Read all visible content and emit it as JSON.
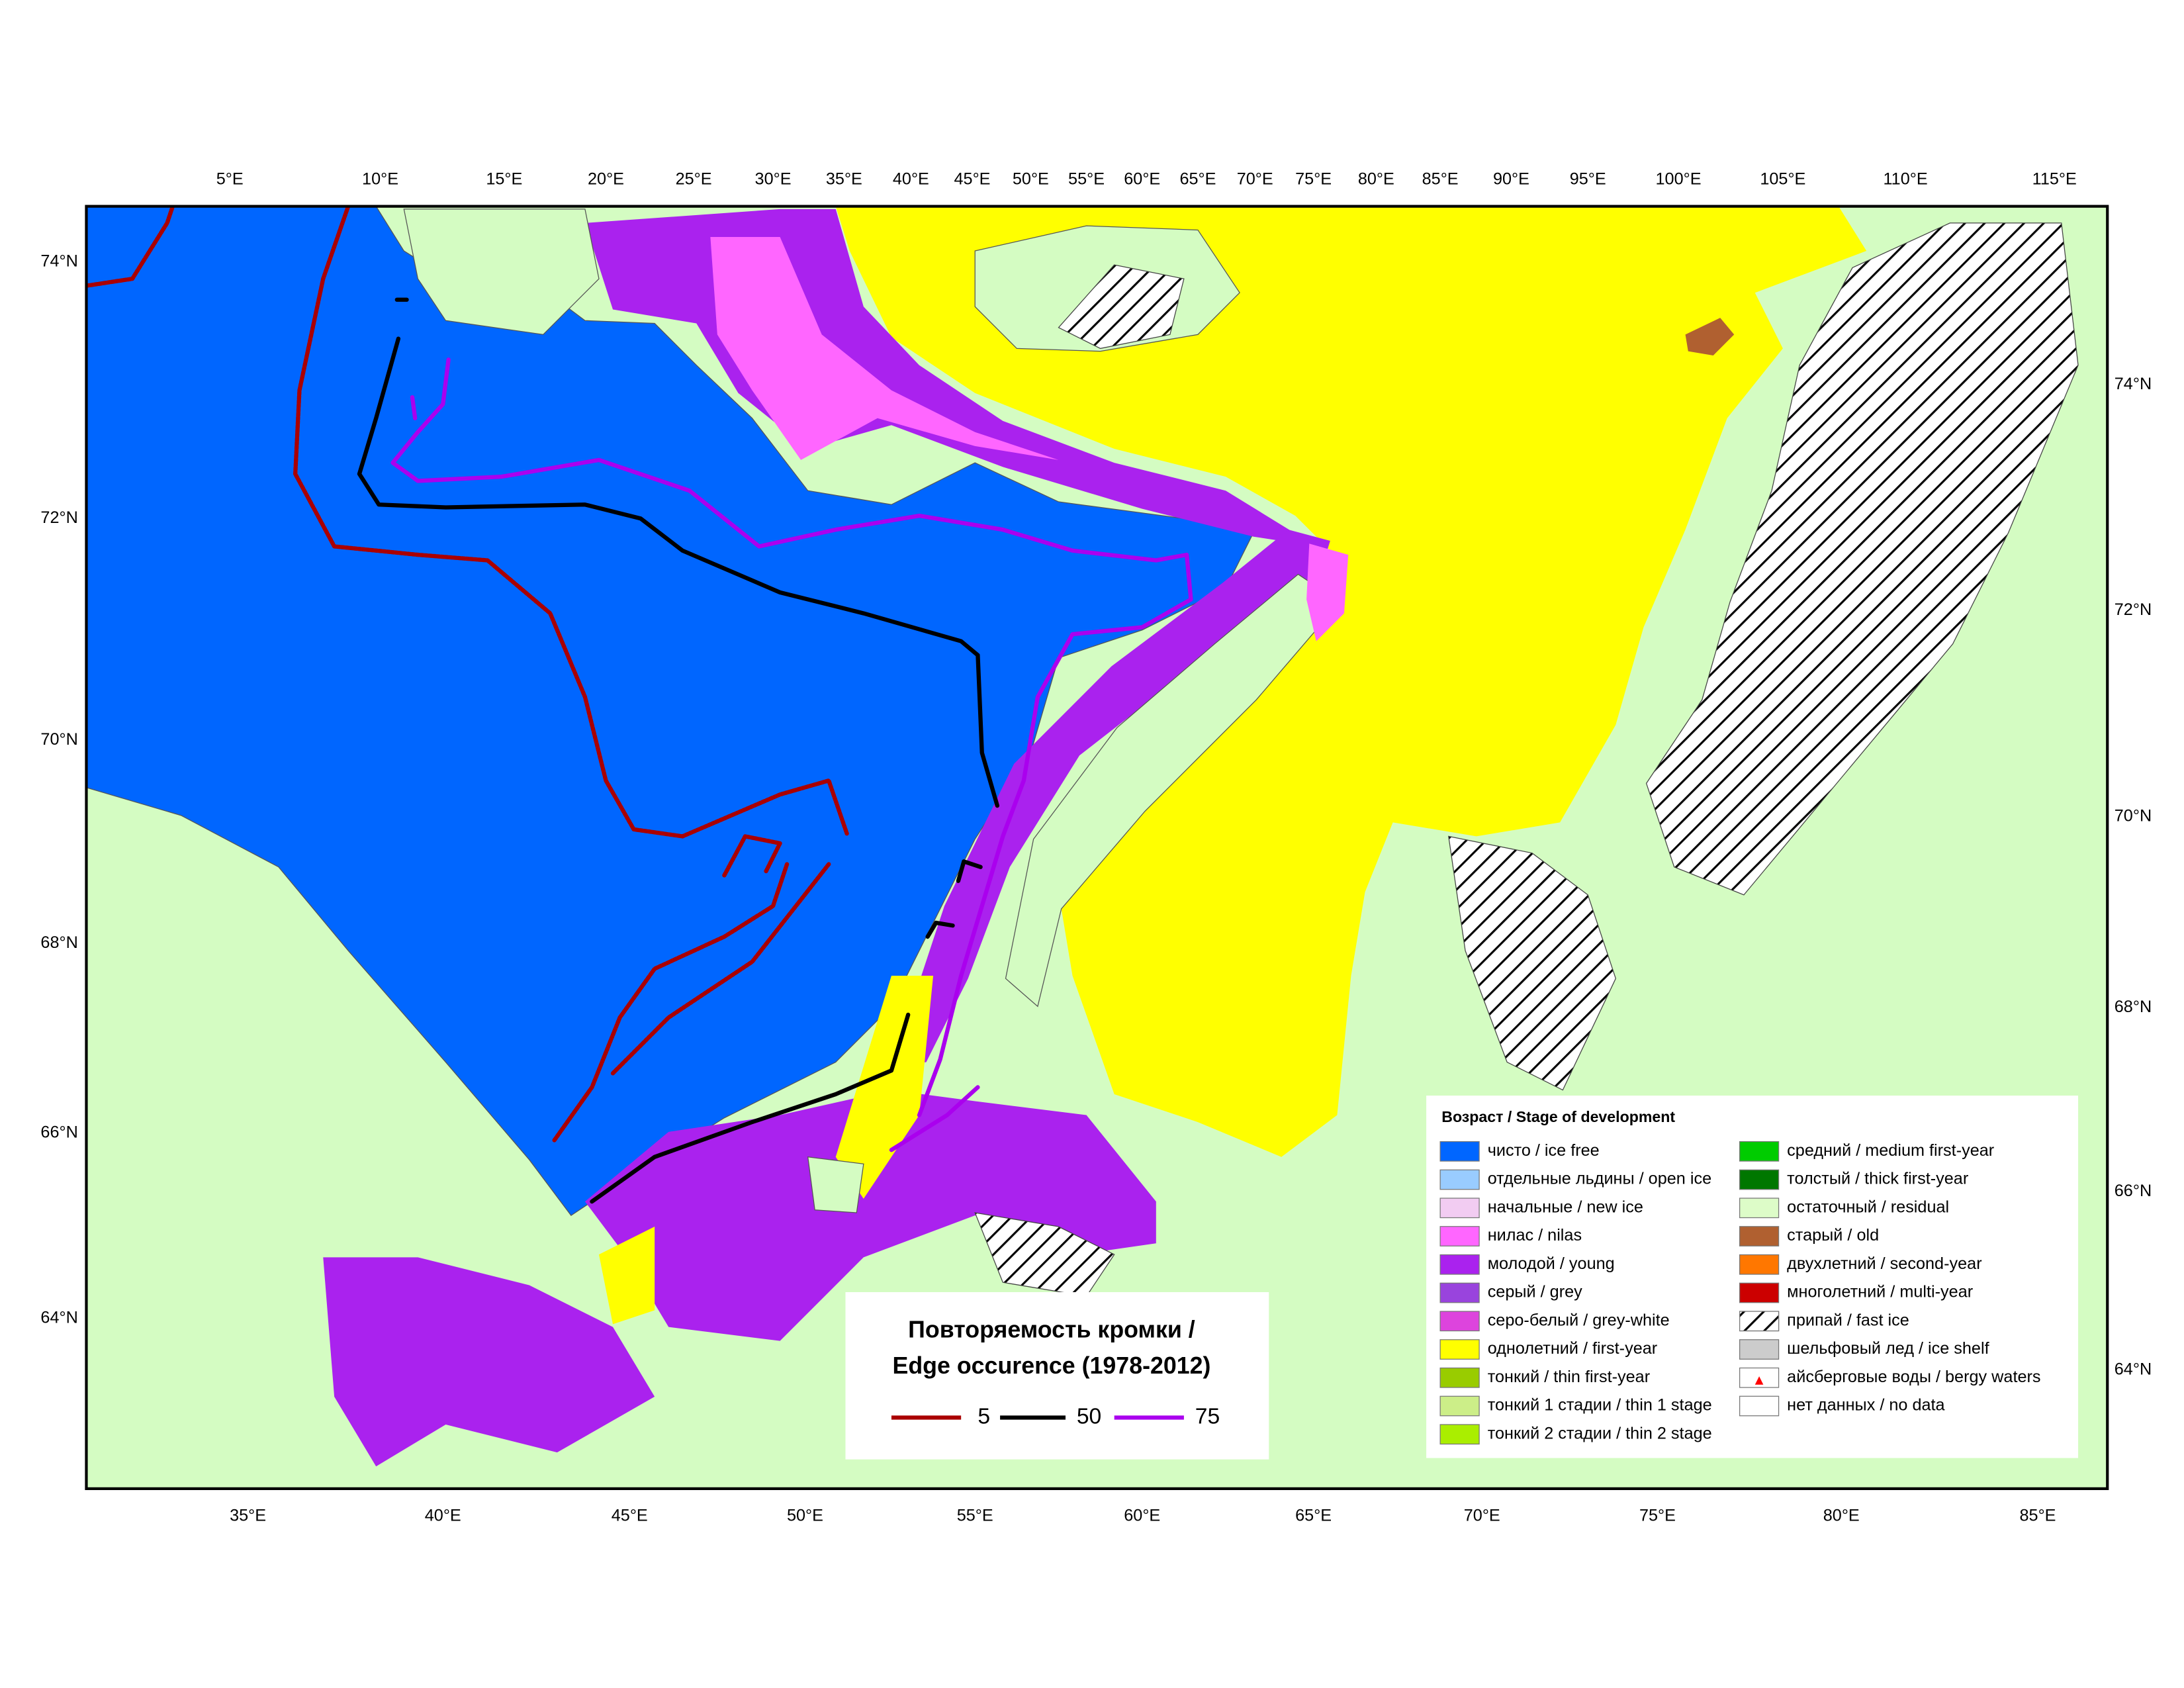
{
  "map": {
    "top_labels": [
      "5°E",
      "10°E",
      "15°E",
      "20°E",
      "25°E",
      "30°E",
      "35°E",
      "40°E",
      "45°E",
      "50°E",
      "55°E",
      "60°E",
      "65°E",
      "70°E",
      "75°E",
      "80°E",
      "85°E",
      "90°E",
      "95°E",
      "100°E",
      "105°E",
      "110°E",
      "115°E"
    ],
    "bottom_labels": [
      "35°E",
      "40°E",
      "45°E",
      "50°E",
      "55°E",
      "60°E",
      "65°E",
      "70°E",
      "75°E",
      "80°E",
      "85°E"
    ],
    "left_labels": [
      "74°N",
      "72°N",
      "70°N",
      "68°N",
      "66°N",
      "64°N"
    ],
    "right_labels": [
      "74°N",
      "72°N",
      "70°N",
      "68°N",
      "66°N",
      "64°N"
    ]
  },
  "legend": {
    "title": "Возраст / Stage of development",
    "items": [
      {
        "label": "чисто / ice free",
        "color": "#0066ff"
      },
      {
        "label": "отдельные льдины / open ice",
        "color": "#99ccff"
      },
      {
        "label": "начальные / new ice",
        "color": "#f2ccf2"
      },
      {
        "label": "нилас / nilas",
        "color": "#ff66ff"
      },
      {
        "label": "молодой / young",
        "color": "#aa22ee"
      },
      {
        "label": "серый / grey",
        "color": "#9944dd"
      },
      {
        "label": "серо-белый / grey-white",
        "color": "#dd44dd"
      },
      {
        "label": "однолетний / first-year",
        "color": "#ffff00"
      },
      {
        "label": "тонкий / thin first-year",
        "color": "#99cc00"
      },
      {
        "label": "тонкий 1 стадии / thin 1 stage",
        "color": "#ccee88"
      },
      {
        "label": "тонкий 2 стадии / thin 2 stage",
        "color": "#aaee00"
      },
      {
        "label": "средний / medium first-year",
        "color": "#00cc00"
      },
      {
        "label": "толстый / thick first-year",
        "color": "#007700"
      },
      {
        "label": "остаточный / residual",
        "color": "#ddfcc8"
      },
      {
        "label": "старый / old",
        "color": "#b06030"
      },
      {
        "label": "двухлетний / second-year",
        "color": "#ff7700"
      },
      {
        "label": "многолетний / multi-year",
        "color": "#cc0000"
      },
      {
        "label": "припай / fast ice",
        "color": "#ffffff"
      },
      {
        "label": "шельфовый лед / ice shelf",
        "color": "#cccccc"
      },
      {
        "label": "айсберговые воды / bergy waters",
        "color": "#ffffff"
      },
      {
        "label": "нет данных / no data",
        "color": "#ffffff"
      }
    ]
  },
  "edge": {
    "title_line1": "Повторяемость кромки /",
    "title_line2": "Edge occurence (1978-2012)",
    "series": [
      {
        "name": "5",
        "color": "#aa0000"
      },
      {
        "name": "50",
        "color": "#000000"
      },
      {
        "name": "75",
        "color": "#aa00ee"
      }
    ]
  }
}
